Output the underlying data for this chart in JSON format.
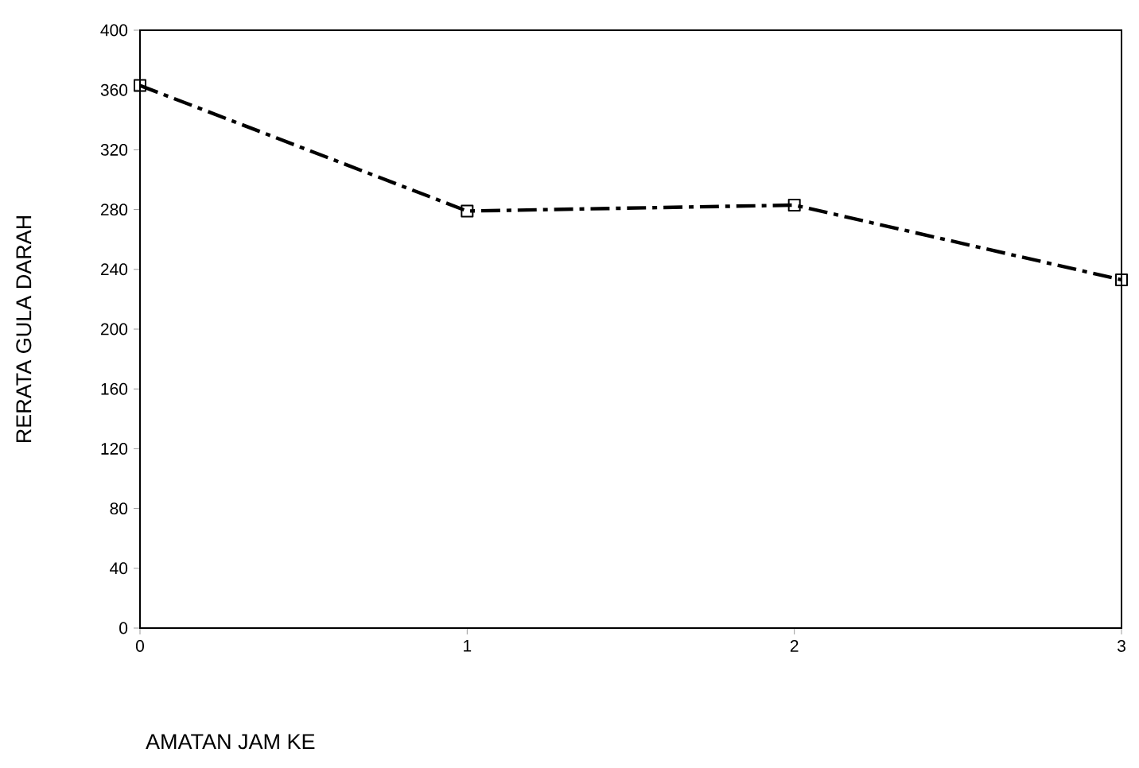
{
  "chart_data": {
    "type": "line",
    "xlabel": "AMATAN JAM KE",
    "ylabel": "RERATA GULA DARAH",
    "x": [
      0,
      1,
      2,
      3
    ],
    "series": [
      {
        "color": "#000000",
        "values": [
          363,
          279,
          283,
          233
        ]
      }
    ],
    "xlim": [
      0,
      3
    ],
    "xticks": [
      0,
      1,
      2,
      3
    ],
    "ylim": [
      0,
      400
    ],
    "yticks": [
      0,
      40,
      80,
      120,
      160,
      200,
      240,
      280,
      320,
      360,
      400
    ],
    "grid": false,
    "marker": "square",
    "line_style": "dashed"
  }
}
